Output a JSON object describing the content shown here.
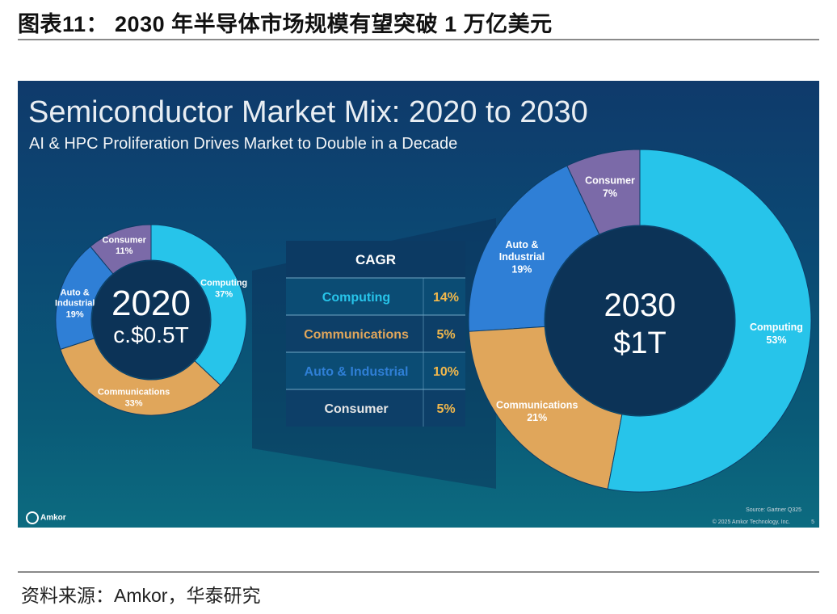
{
  "figure_title": "图表11：  2030 年半导体市场规模有望突破 1 万亿美元",
  "source": "资料来源：Amkor，华泰研究",
  "slide": {
    "title": "Semiconductor Market Mix: 2020 to 2030",
    "subtitle": "AI & HPC Proliferation Drives Market to Double in a Decade",
    "source_note": "Source: Gartner Q325",
    "copyright": "© 2025 Amkor Technology, Inc.",
    "page_number": "5",
    "logo_text": "Amkor"
  },
  "colors": {
    "Computing": "#27c4ea",
    "Communications": "#e0a65b",
    "Auto & Industrial": "#2f7fd6",
    "Consumer": "#7b6aa8",
    "cagr_value": "#f2b84c"
  },
  "chart_data": [
    {
      "type": "pie",
      "variant": "donut",
      "center_label": [
        "2020",
        "c.$0.5T"
      ],
      "slices": [
        {
          "label": "Computing",
          "value": 37,
          "value_label": "37%"
        },
        {
          "label": "Communications",
          "value": 33,
          "value_label": "33%"
        },
        {
          "label": "Auto & Industrial",
          "value": 19,
          "value_label": "19%"
        },
        {
          "label": "Consumer",
          "value": 11,
          "value_label": "11%"
        }
      ]
    },
    {
      "type": "pie",
      "variant": "donut",
      "center_label": [
        "2030",
        "$1T"
      ],
      "slices": [
        {
          "label": "Computing",
          "value": 53,
          "value_label": "53%"
        },
        {
          "label": "Communications",
          "value": 21,
          "value_label": "21%"
        },
        {
          "label": "Auto & Industrial",
          "value": 19,
          "value_label": "19%"
        },
        {
          "label": "Consumer",
          "value": 7,
          "value_label": "7%"
        }
      ]
    },
    {
      "type": "table",
      "header": "CAGR",
      "rows": [
        {
          "segment": "Computing",
          "cagr": "14%"
        },
        {
          "segment": "Communications",
          "cagr": "5%"
        },
        {
          "segment": "Auto & Industrial",
          "cagr": "10%"
        },
        {
          "segment": "Consumer",
          "cagr": "5%"
        }
      ]
    }
  ]
}
